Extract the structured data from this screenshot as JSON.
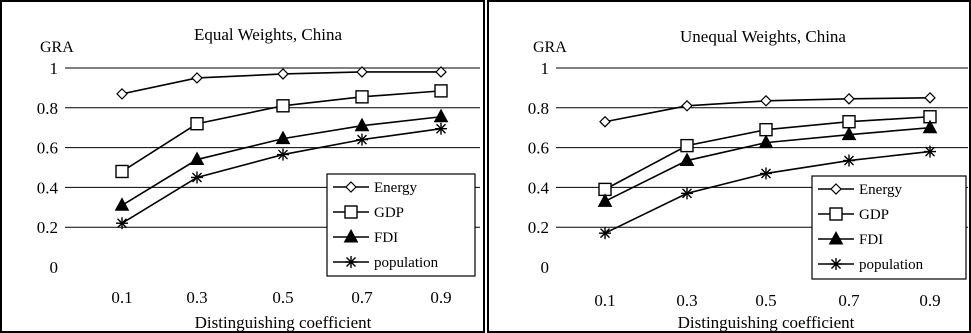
{
  "chart_data": [
    {
      "type": "line",
      "title": "Equal Weights, China",
      "ylabel": "GRA",
      "xlabel": "Distinguishing coefficient",
      "x": [
        "0.1",
        "0.3",
        "0.5",
        "0.7",
        "0.9"
      ],
      "ylim": [
        0,
        1
      ],
      "yticks": [
        "0",
        "0.2",
        "0.4",
        "0.6",
        "0.8",
        "1"
      ],
      "grid": true,
      "legend": "bottom-right",
      "series": [
        {
          "name": "Energy",
          "marker": "diamond",
          "values": [
            0.87,
            0.95,
            0.97,
            0.98,
            0.98
          ]
        },
        {
          "name": "GDP",
          "marker": "square",
          "values": [
            0.48,
            0.72,
            0.81,
            0.855,
            0.885
          ]
        },
        {
          "name": "FDI",
          "marker": "triangle",
          "values": [
            0.31,
            0.54,
            0.645,
            0.71,
            0.755
          ]
        },
        {
          "name": "population",
          "marker": "star",
          "values": [
            0.22,
            0.45,
            0.565,
            0.64,
            0.695
          ]
        }
      ]
    },
    {
      "type": "line",
      "title": "Unequal Weights, China",
      "ylabel": "GRA",
      "xlabel": "Distinguishing coefficient",
      "x": [
        "0.1",
        "0.3",
        "0.5",
        "0.7",
        "0.9"
      ],
      "ylim": [
        0,
        1
      ],
      "yticks": [
        "0",
        "0.2",
        "0.4",
        "0.6",
        "0.8",
        "1"
      ],
      "grid": true,
      "legend": "bottom-right",
      "series": [
        {
          "name": "Energy",
          "marker": "diamond",
          "values": [
            0.73,
            0.81,
            0.835,
            0.845,
            0.85
          ]
        },
        {
          "name": "GDP",
          "marker": "square",
          "values": [
            0.39,
            0.61,
            0.69,
            0.73,
            0.755
          ]
        },
        {
          "name": "FDI",
          "marker": "triangle",
          "values": [
            0.33,
            0.535,
            0.625,
            0.665,
            0.7
          ]
        },
        {
          "name": "population",
          "marker": "star",
          "values": [
            0.17,
            0.37,
            0.47,
            0.535,
            0.58
          ]
        }
      ]
    }
  ]
}
